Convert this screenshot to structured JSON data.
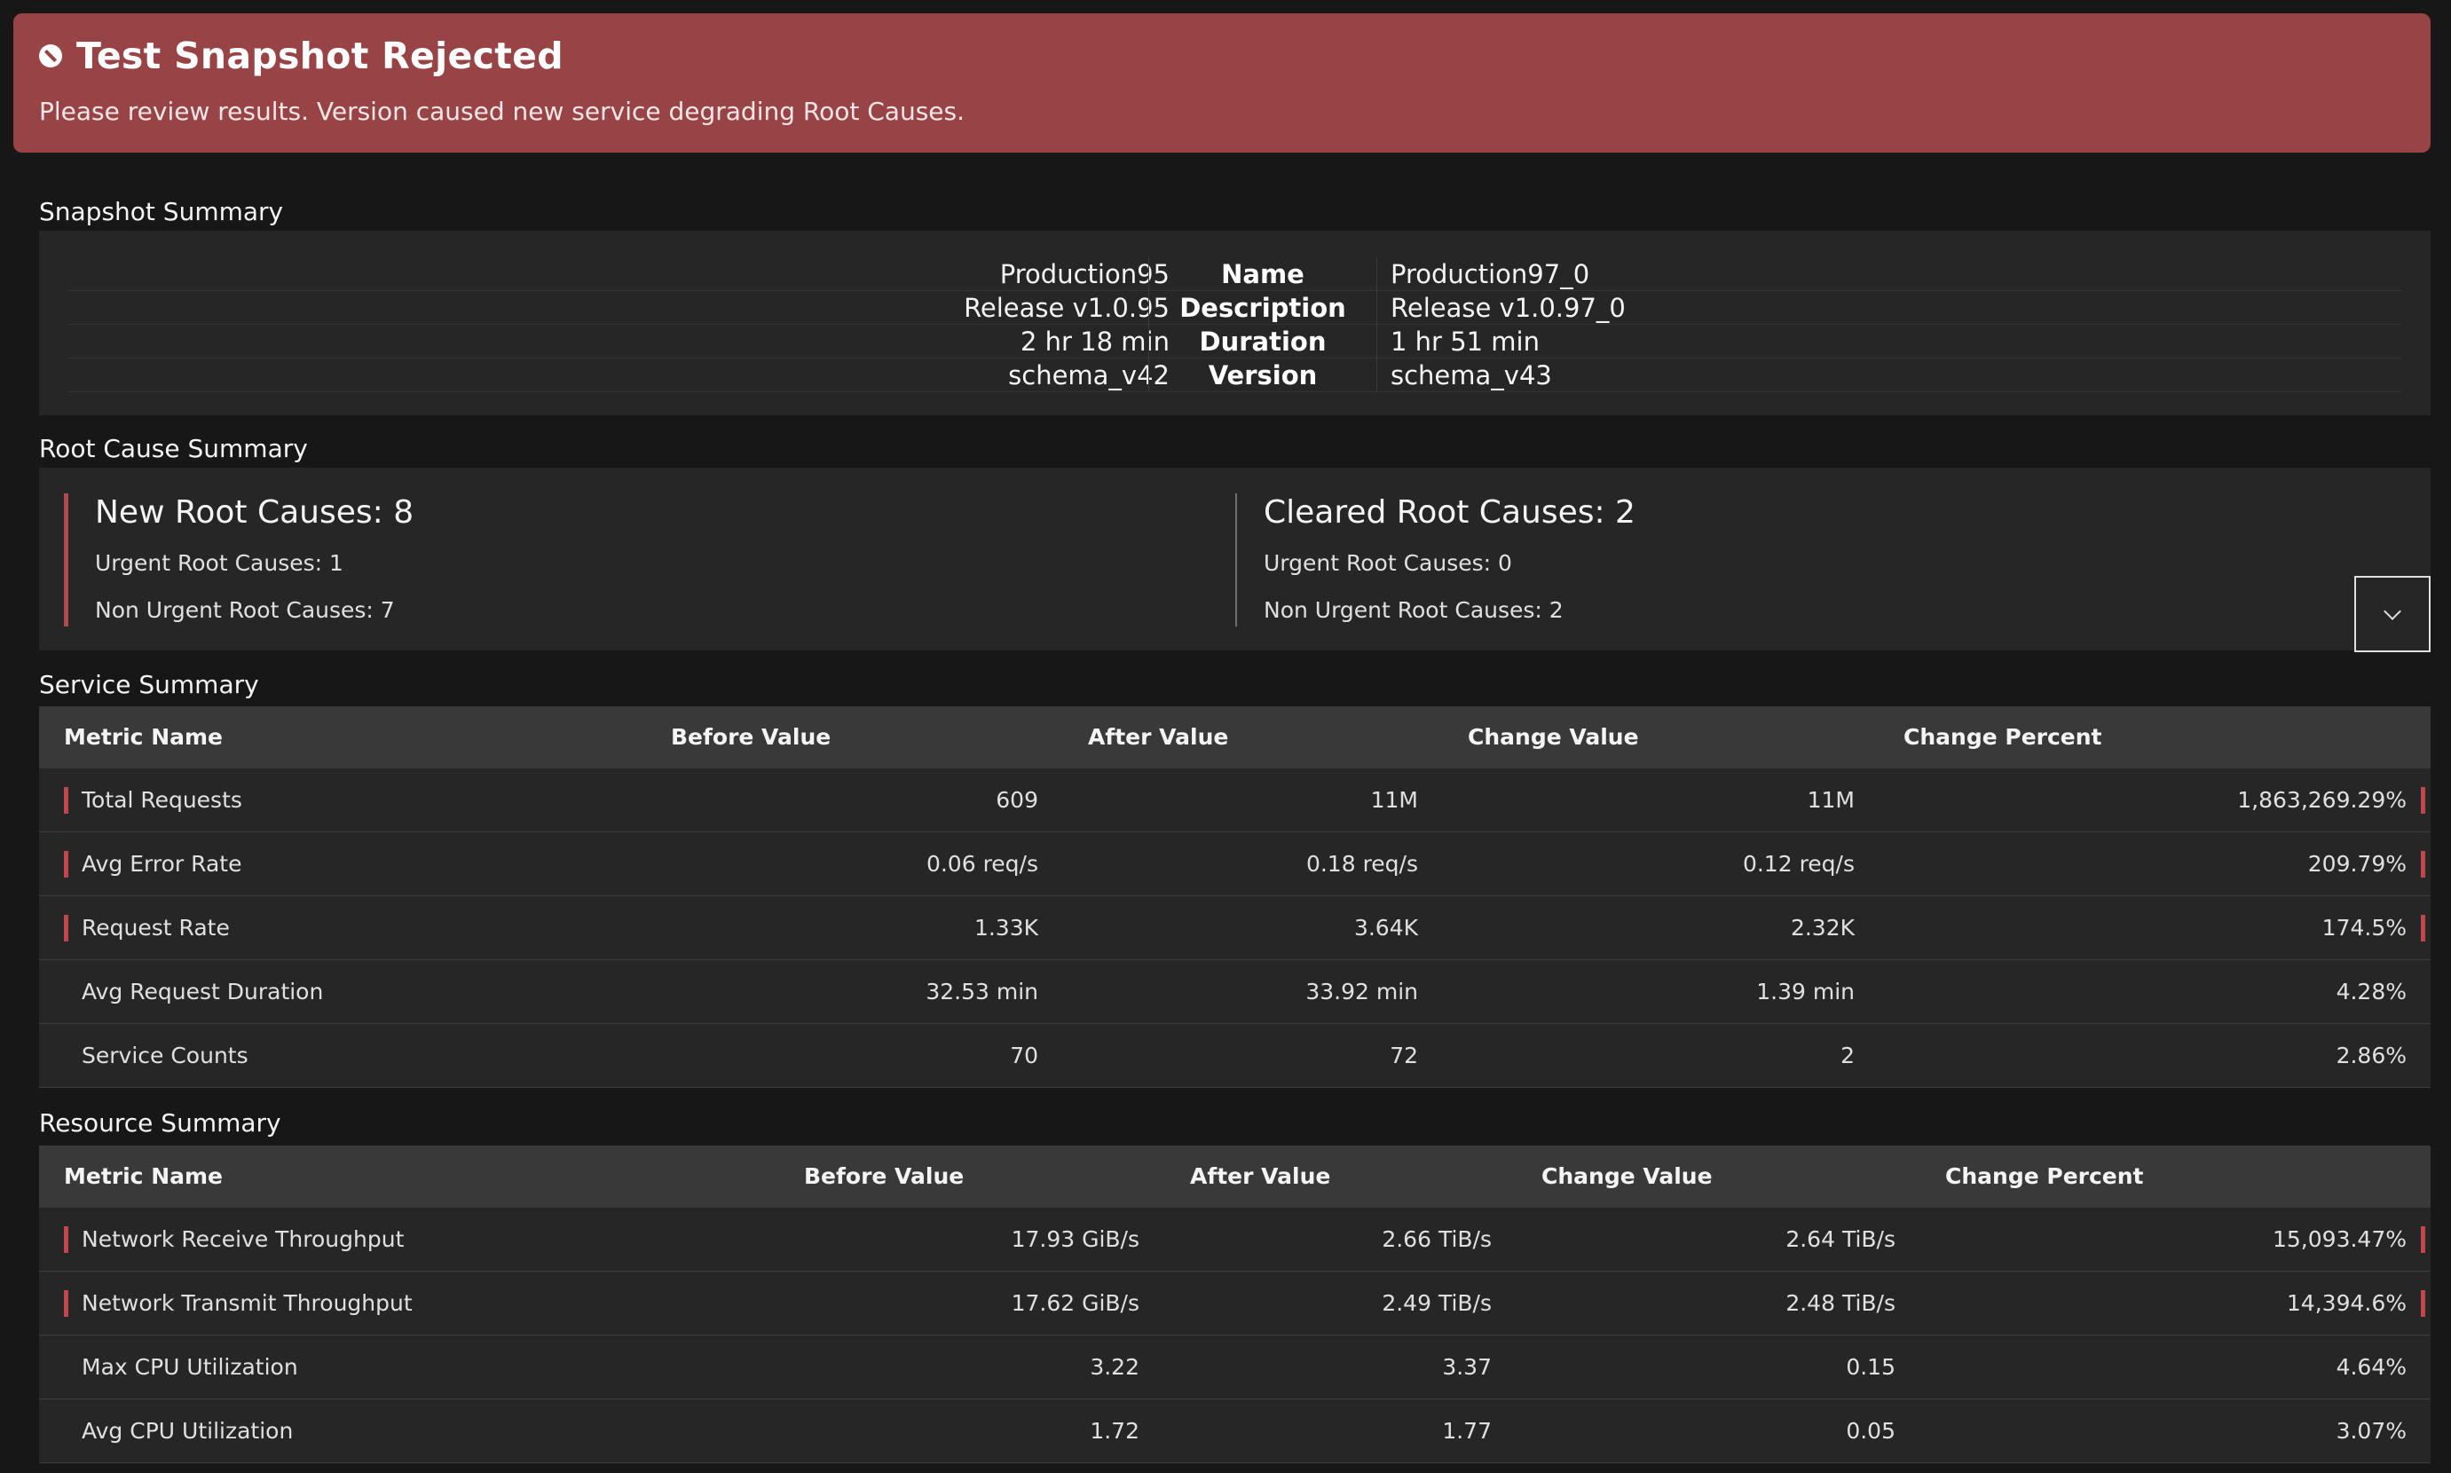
{
  "banner": {
    "title": "Test Snapshot Rejected",
    "message": "Please review results. Version caused new service degrading Root Causes.",
    "icon": "blocked-icon",
    "color": "#984446"
  },
  "snapshot_summary": {
    "title": "Snapshot Summary",
    "rows": [
      {
        "before": "Production95",
        "label": "Name",
        "after": "Production97_0"
      },
      {
        "before": "Release v1.0.95",
        "label": "Description",
        "after": "Release v1.0.97_0"
      },
      {
        "before": "2 hr 18 min",
        "label": "Duration",
        "after": "1 hr 51 min"
      },
      {
        "before": "schema_v42",
        "label": "Version",
        "after": "schema_v43"
      }
    ]
  },
  "root_cause_summary": {
    "title": "Root Cause Summary",
    "new": {
      "heading": "New Root Causes: 8",
      "urgent": "Urgent Root Causes: 1",
      "non_urgent": "Non Urgent Root Causes: 7"
    },
    "cleared": {
      "heading": "Cleared Root Causes: 2",
      "urgent": "Urgent Root Causes: 0",
      "non_urgent": "Non Urgent Root Causes: 2"
    },
    "expand_icon": "chevron-down-icon"
  },
  "service_summary": {
    "title": "Service Summary",
    "headers": [
      "Metric Name",
      "Before Value",
      "After Value",
      "Change Value",
      "Change Percent"
    ],
    "rows": [
      {
        "name": "Total Requests",
        "before": "609",
        "after": "11M",
        "change": "11M",
        "percent": "1,863,269.29%",
        "flagged": true
      },
      {
        "name": "Avg Error Rate",
        "before": "0.06 req/s",
        "after": "0.18 req/s",
        "change": "0.12 req/s",
        "percent": "209.79%",
        "flagged": true
      },
      {
        "name": "Request Rate",
        "before": "1.33K",
        "after": "3.64K",
        "change": "2.32K",
        "percent": "174.5%",
        "flagged": true
      },
      {
        "name": "Avg Request Duration",
        "before": "32.53 min",
        "after": "33.92 min",
        "change": "1.39 min",
        "percent": "4.28%",
        "flagged": false
      },
      {
        "name": "Service Counts",
        "before": "70",
        "after": "72",
        "change": "2",
        "percent": "2.86%",
        "flagged": false
      }
    ]
  },
  "resource_summary": {
    "title": "Resource Summary",
    "headers": [
      "Metric Name",
      "Before Value",
      "After Value",
      "Change Value",
      "Change Percent"
    ],
    "rows": [
      {
        "name": "Network Receive Throughput",
        "before": "17.93 GiB/s",
        "after": "2.66 TiB/s",
        "change": "2.64 TiB/s",
        "percent": "15,093.47%",
        "flagged": true
      },
      {
        "name": "Network Transmit Throughput",
        "before": "17.62 GiB/s",
        "after": "2.49 TiB/s",
        "change": "2.48 TiB/s",
        "percent": "14,394.6%",
        "flagged": true
      },
      {
        "name": "Max CPU Utilization",
        "before": "3.22",
        "after": "3.37",
        "change": "0.15",
        "percent": "4.64%",
        "flagged": false
      },
      {
        "name": "Avg CPU Utilization",
        "before": "1.72",
        "after": "1.77",
        "change": "0.05",
        "percent": "3.07%",
        "flagged": false
      }
    ]
  }
}
